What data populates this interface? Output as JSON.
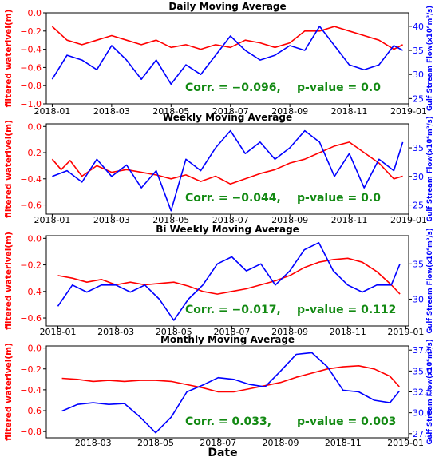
{
  "xlabel": "Date",
  "chart_data": [
    {
      "type": "line",
      "title": "Daily Moving Average",
      "ylabel_left": "filtered waterlvel(m)",
      "ylabel_right": "Gulf Stream Flow(x10⁶m³/s)",
      "left_ticks": [
        "0.0",
        "−0.2",
        "−0.4",
        "−0.6",
        "−0.8",
        "−1.0"
      ],
      "left_tick_values": [
        0.0,
        -0.2,
        -0.4,
        -0.6,
        -0.8,
        -1.0
      ],
      "left_ylim": [
        -1.0,
        0.0
      ],
      "right_ticks": [
        "40",
        "35",
        "30",
        "25"
      ],
      "right_tick_values": [
        40,
        35,
        30,
        25
      ],
      "right_ylim": [
        23.9,
        42.8
      ],
      "x_ticks": [
        "2018-01",
        "2018-03",
        "2018-05",
        "2018-07",
        "2018-09",
        "2018-11",
        "2019-01"
      ],
      "x_tick_values": [
        0,
        2,
        4,
        6,
        8,
        10,
        12
      ],
      "xlim": [
        -0.2,
        12.0
      ],
      "annotation": {
        "corr": "Corr. = −0.096,",
        "pvalue": "p-value = 0.0"
      },
      "series": [
        {
          "color": "#ff0000",
          "axis": "left",
          "x": [
            0.0,
            0.5,
            1.0,
            1.5,
            2.0,
            2.5,
            3.0,
            3.5,
            4.0,
            4.5,
            5.0,
            5.5,
            6.0,
            6.5,
            7.0,
            7.5,
            8.0,
            8.5,
            9.0,
            9.5,
            10.0,
            10.5,
            11.0,
            11.5,
            11.8
          ],
          "y": [
            -0.15,
            -0.3,
            -0.35,
            -0.3,
            -0.25,
            -0.3,
            -0.35,
            -0.3,
            -0.38,
            -0.35,
            -0.4,
            -0.35,
            -0.38,
            -0.3,
            -0.33,
            -0.38,
            -0.33,
            -0.2,
            -0.2,
            -0.15,
            -0.2,
            -0.25,
            -0.3,
            -0.4,
            -0.35
          ]
        },
        {
          "color": "#0000ff",
          "axis": "right",
          "x": [
            0.0,
            0.5,
            1.0,
            1.5,
            2.0,
            2.5,
            3.0,
            3.5,
            4.0,
            4.5,
            5.0,
            5.5,
            6.0,
            6.5,
            7.0,
            7.5,
            8.0,
            8.5,
            9.0,
            9.5,
            10.0,
            10.5,
            11.0,
            11.5,
            11.8
          ],
          "y": [
            29,
            34,
            33,
            31,
            36,
            33,
            29,
            33,
            28,
            32,
            30,
            34,
            38,
            35,
            33,
            34,
            36,
            35,
            40,
            36,
            32,
            31,
            32,
            36,
            35
          ]
        }
      ]
    },
    {
      "type": "line",
      "title": "Weekly Moving Average",
      "ylabel_left": "filtered waterlvel(m)",
      "ylabel_right": "Gulf Stream Flow(x10⁶m³/s)",
      "left_ticks": [
        "0.0",
        "−0.2",
        "−0.4",
        "−0.6"
      ],
      "left_tick_values": [
        0.0,
        -0.2,
        -0.4,
        -0.6
      ],
      "left_ylim": [
        -0.67,
        0.02
      ],
      "right_ticks": [
        "35",
        "30",
        "25"
      ],
      "right_tick_values": [
        35,
        30,
        25
      ],
      "right_ylim": [
        23.4,
        39.2
      ],
      "x_ticks": [
        "2018-01",
        "2018-03",
        "2018-05",
        "2018-07",
        "2018-09",
        "2018-11",
        "2019-01"
      ],
      "x_tick_values": [
        0,
        2,
        4,
        6,
        8,
        10,
        12
      ],
      "xlim": [
        -0.2,
        12.0
      ],
      "annotation": {
        "corr": "Corr. = −0.044,",
        "pvalue": "p-value = 0.0"
      },
      "series": [
        {
          "color": "#ff0000",
          "axis": "left",
          "x": [
            0.0,
            0.3,
            0.6,
            1.0,
            1.5,
            2.0,
            2.5,
            3.0,
            3.5,
            4.0,
            4.5,
            5.0,
            5.5,
            6.0,
            6.5,
            7.0,
            7.5,
            8.0,
            8.5,
            9.0,
            9.5,
            10.0,
            10.5,
            11.0,
            11.5,
            11.8
          ],
          "y": [
            -0.25,
            -0.33,
            -0.26,
            -0.38,
            -0.3,
            -0.35,
            -0.33,
            -0.35,
            -0.37,
            -0.4,
            -0.37,
            -0.42,
            -0.38,
            -0.44,
            -0.4,
            -0.36,
            -0.33,
            -0.28,
            -0.25,
            -0.2,
            -0.15,
            -0.12,
            -0.2,
            -0.28,
            -0.4,
            -0.38
          ]
        },
        {
          "color": "#0000ff",
          "axis": "right",
          "x": [
            0.0,
            0.5,
            1.0,
            1.5,
            2.0,
            2.5,
            3.0,
            3.5,
            4.0,
            4.5,
            5.0,
            5.5,
            6.0,
            6.5,
            7.0,
            7.5,
            8.0,
            8.5,
            9.0,
            9.5,
            10.0,
            10.5,
            11.0,
            11.5,
            11.8
          ],
          "y": [
            30,
            31,
            29,
            33,
            30,
            32,
            28,
            31,
            24,
            33,
            31,
            35,
            38,
            34,
            36,
            33,
            35,
            38,
            36,
            30,
            34,
            28,
            33,
            31,
            36
          ]
        }
      ]
    },
    {
      "type": "line",
      "title": "Bi Weekly Moving Average",
      "ylabel_left": "filtered waterlvel(m)",
      "ylabel_right": "Gulf Stream Flow(x10⁶m³/s)",
      "left_ticks": [
        "0.0",
        "−0.2",
        "−0.4",
        "−0.6"
      ],
      "left_tick_values": [
        0.0,
        -0.2,
        -0.4,
        -0.6
      ],
      "left_ylim": [
        -0.66,
        0.02
      ],
      "right_ticks": [
        "35",
        "30"
      ],
      "right_tick_values": [
        35,
        30
      ],
      "right_ylim": [
        26.2,
        39.0
      ],
      "x_ticks": [
        "2018-01",
        "2018-03",
        "2018-05",
        "2018-07",
        "2018-09",
        "2018-11",
        "2019-01"
      ],
      "x_tick_values": [
        0,
        2,
        4,
        6,
        8,
        10,
        12
      ],
      "xlim": [
        -0.4,
        12.1
      ],
      "annotation": {
        "corr": "Corr. = −0.017,",
        "pvalue": "p-value = 0.112"
      },
      "series": [
        {
          "color": "#ff0000",
          "axis": "left",
          "x": [
            0.0,
            0.5,
            1.0,
            1.5,
            2.0,
            2.5,
            3.0,
            3.5,
            4.0,
            4.5,
            5.0,
            5.5,
            6.0,
            6.5,
            7.0,
            7.5,
            8.0,
            8.5,
            9.0,
            9.5,
            10.0,
            10.5,
            11.0,
            11.5,
            11.8
          ],
          "y": [
            -0.28,
            -0.3,
            -0.33,
            -0.31,
            -0.35,
            -0.33,
            -0.35,
            -0.34,
            -0.33,
            -0.36,
            -0.4,
            -0.42,
            -0.4,
            -0.38,
            -0.35,
            -0.32,
            -0.28,
            -0.22,
            -0.18,
            -0.16,
            -0.15,
            -0.18,
            -0.25,
            -0.35,
            -0.42
          ]
        },
        {
          "color": "#0000ff",
          "axis": "right",
          "x": [
            0.0,
            0.5,
            1.0,
            1.5,
            2.0,
            2.5,
            3.0,
            3.5,
            4.0,
            4.5,
            5.0,
            5.5,
            6.0,
            6.5,
            7.0,
            7.5,
            8.0,
            8.5,
            9.0,
            9.5,
            10.0,
            10.5,
            11.0,
            11.5,
            11.8
          ],
          "y": [
            29,
            32,
            31,
            32,
            32,
            31,
            32,
            30,
            27,
            30,
            32,
            35,
            36,
            34,
            35,
            32,
            34,
            37,
            38,
            34,
            32,
            31,
            32,
            32,
            35
          ]
        }
      ]
    },
    {
      "type": "line",
      "title": "Monthly Moving Average",
      "ylabel_left": "filtered waterlvel(m)",
      "ylabel_right": "Gulf Stream Flow(x10⁶m³/s)",
      "left_ticks": [
        "0.0",
        "−0.2",
        "−0.4",
        "−0.6",
        "−0.8"
      ],
      "left_tick_values": [
        0.0,
        -0.2,
        -0.4,
        -0.6,
        -0.8
      ],
      "left_ylim": [
        -0.86,
        0.02
      ],
      "right_ticks": [
        "37.5",
        "35.0",
        "32.5",
        "30.0",
        "27.5"
      ],
      "right_tick_values": [
        37.5,
        35.0,
        32.5,
        30.0,
        27.5
      ],
      "right_ylim": [
        27.0,
        38.0
      ],
      "x_ticks": [
        "2018-03",
        "2018-05",
        "2018-07",
        "2018-09",
        "2018-11",
        "2019-01"
      ],
      "x_tick_values": [
        2,
        4,
        6,
        8,
        10,
        12
      ],
      "xlim": [
        0.5,
        12.1
      ],
      "annotation": {
        "corr": "Corr. = 0.033,",
        "pvalue": "p-value = 0.003"
      },
      "series": [
        {
          "color": "#ff0000",
          "axis": "left",
          "x": [
            1.0,
            1.5,
            2.0,
            2.5,
            3.0,
            3.5,
            4.0,
            4.5,
            5.0,
            5.5,
            6.0,
            6.5,
            7.0,
            7.5,
            8.0,
            8.5,
            9.0,
            9.5,
            10.0,
            10.5,
            11.0,
            11.5,
            11.8
          ],
          "y": [
            -0.29,
            -0.3,
            -0.32,
            -0.31,
            -0.32,
            -0.31,
            -0.31,
            -0.32,
            -0.35,
            -0.38,
            -0.42,
            -0.42,
            -0.39,
            -0.36,
            -0.33,
            -0.28,
            -0.24,
            -0.2,
            -0.18,
            -0.17,
            -0.2,
            -0.27,
            -0.37
          ]
        },
        {
          "color": "#0000ff",
          "axis": "right",
          "x": [
            1.0,
            1.5,
            2.0,
            2.5,
            3.0,
            3.5,
            4.0,
            4.5,
            5.0,
            5.5,
            6.0,
            6.5,
            7.0,
            7.5,
            8.0,
            8.5,
            9.0,
            9.5,
            10.0,
            10.5,
            11.0,
            11.5,
            11.8
          ],
          "y": [
            30.2,
            31.0,
            31.2,
            31.0,
            31.1,
            29.5,
            27.6,
            29.5,
            32.5,
            33.3,
            34.2,
            34.0,
            33.4,
            33.1,
            35.0,
            37.0,
            37.2,
            35.5,
            32.7,
            32.5,
            31.5,
            31.2,
            32.6
          ]
        }
      ]
    }
  ]
}
